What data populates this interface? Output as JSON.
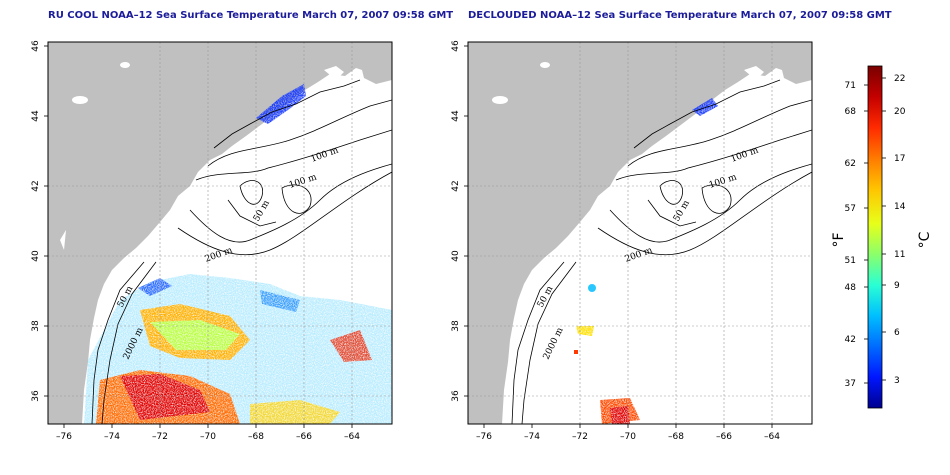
{
  "maps": [
    {
      "title": "RU COOL NOAA–12 Sea Surface Temperature March 07, 2007 09:58 GMT",
      "type": "raw"
    },
    {
      "title": "DECLOUDED NOAA–12 Sea Surface Temperature March 07, 2007 09:58 GMT",
      "type": "declouded"
    }
  ],
  "axes": {
    "lon_ticks": [
      "–76",
      "–74",
      "–72",
      "–70",
      "–68",
      "–66",
      "–64"
    ],
    "lat_ticks": [
      "36",
      "38",
      "40",
      "42",
      "44",
      "46"
    ],
    "lon_range": [
      -77,
      -63
    ],
    "lat_range": [
      35,
      46
    ]
  },
  "contours": [
    "100 m",
    "100 m",
    "50 m",
    "200 m",
    "50 m",
    "2000 m"
  ],
  "colorbar": {
    "fahrenheit_unit": "°F",
    "celsius_unit": "°C",
    "fahrenheit_ticks": [
      "71",
      "68",
      "62",
      "57",
      "51",
      "48",
      "42",
      "37"
    ],
    "celsius_ticks": [
      "22",
      "20",
      "17",
      "14",
      "11",
      "9",
      "6",
      "3"
    ],
    "colors": [
      "#7a0000",
      "#c40000",
      "#ff2a00",
      "#ff7a00",
      "#ffc400",
      "#e8ff1a",
      "#8cff6a",
      "#2affd4",
      "#00bfff",
      "#006bff",
      "#0016ff",
      "#00008f"
    ]
  }
}
